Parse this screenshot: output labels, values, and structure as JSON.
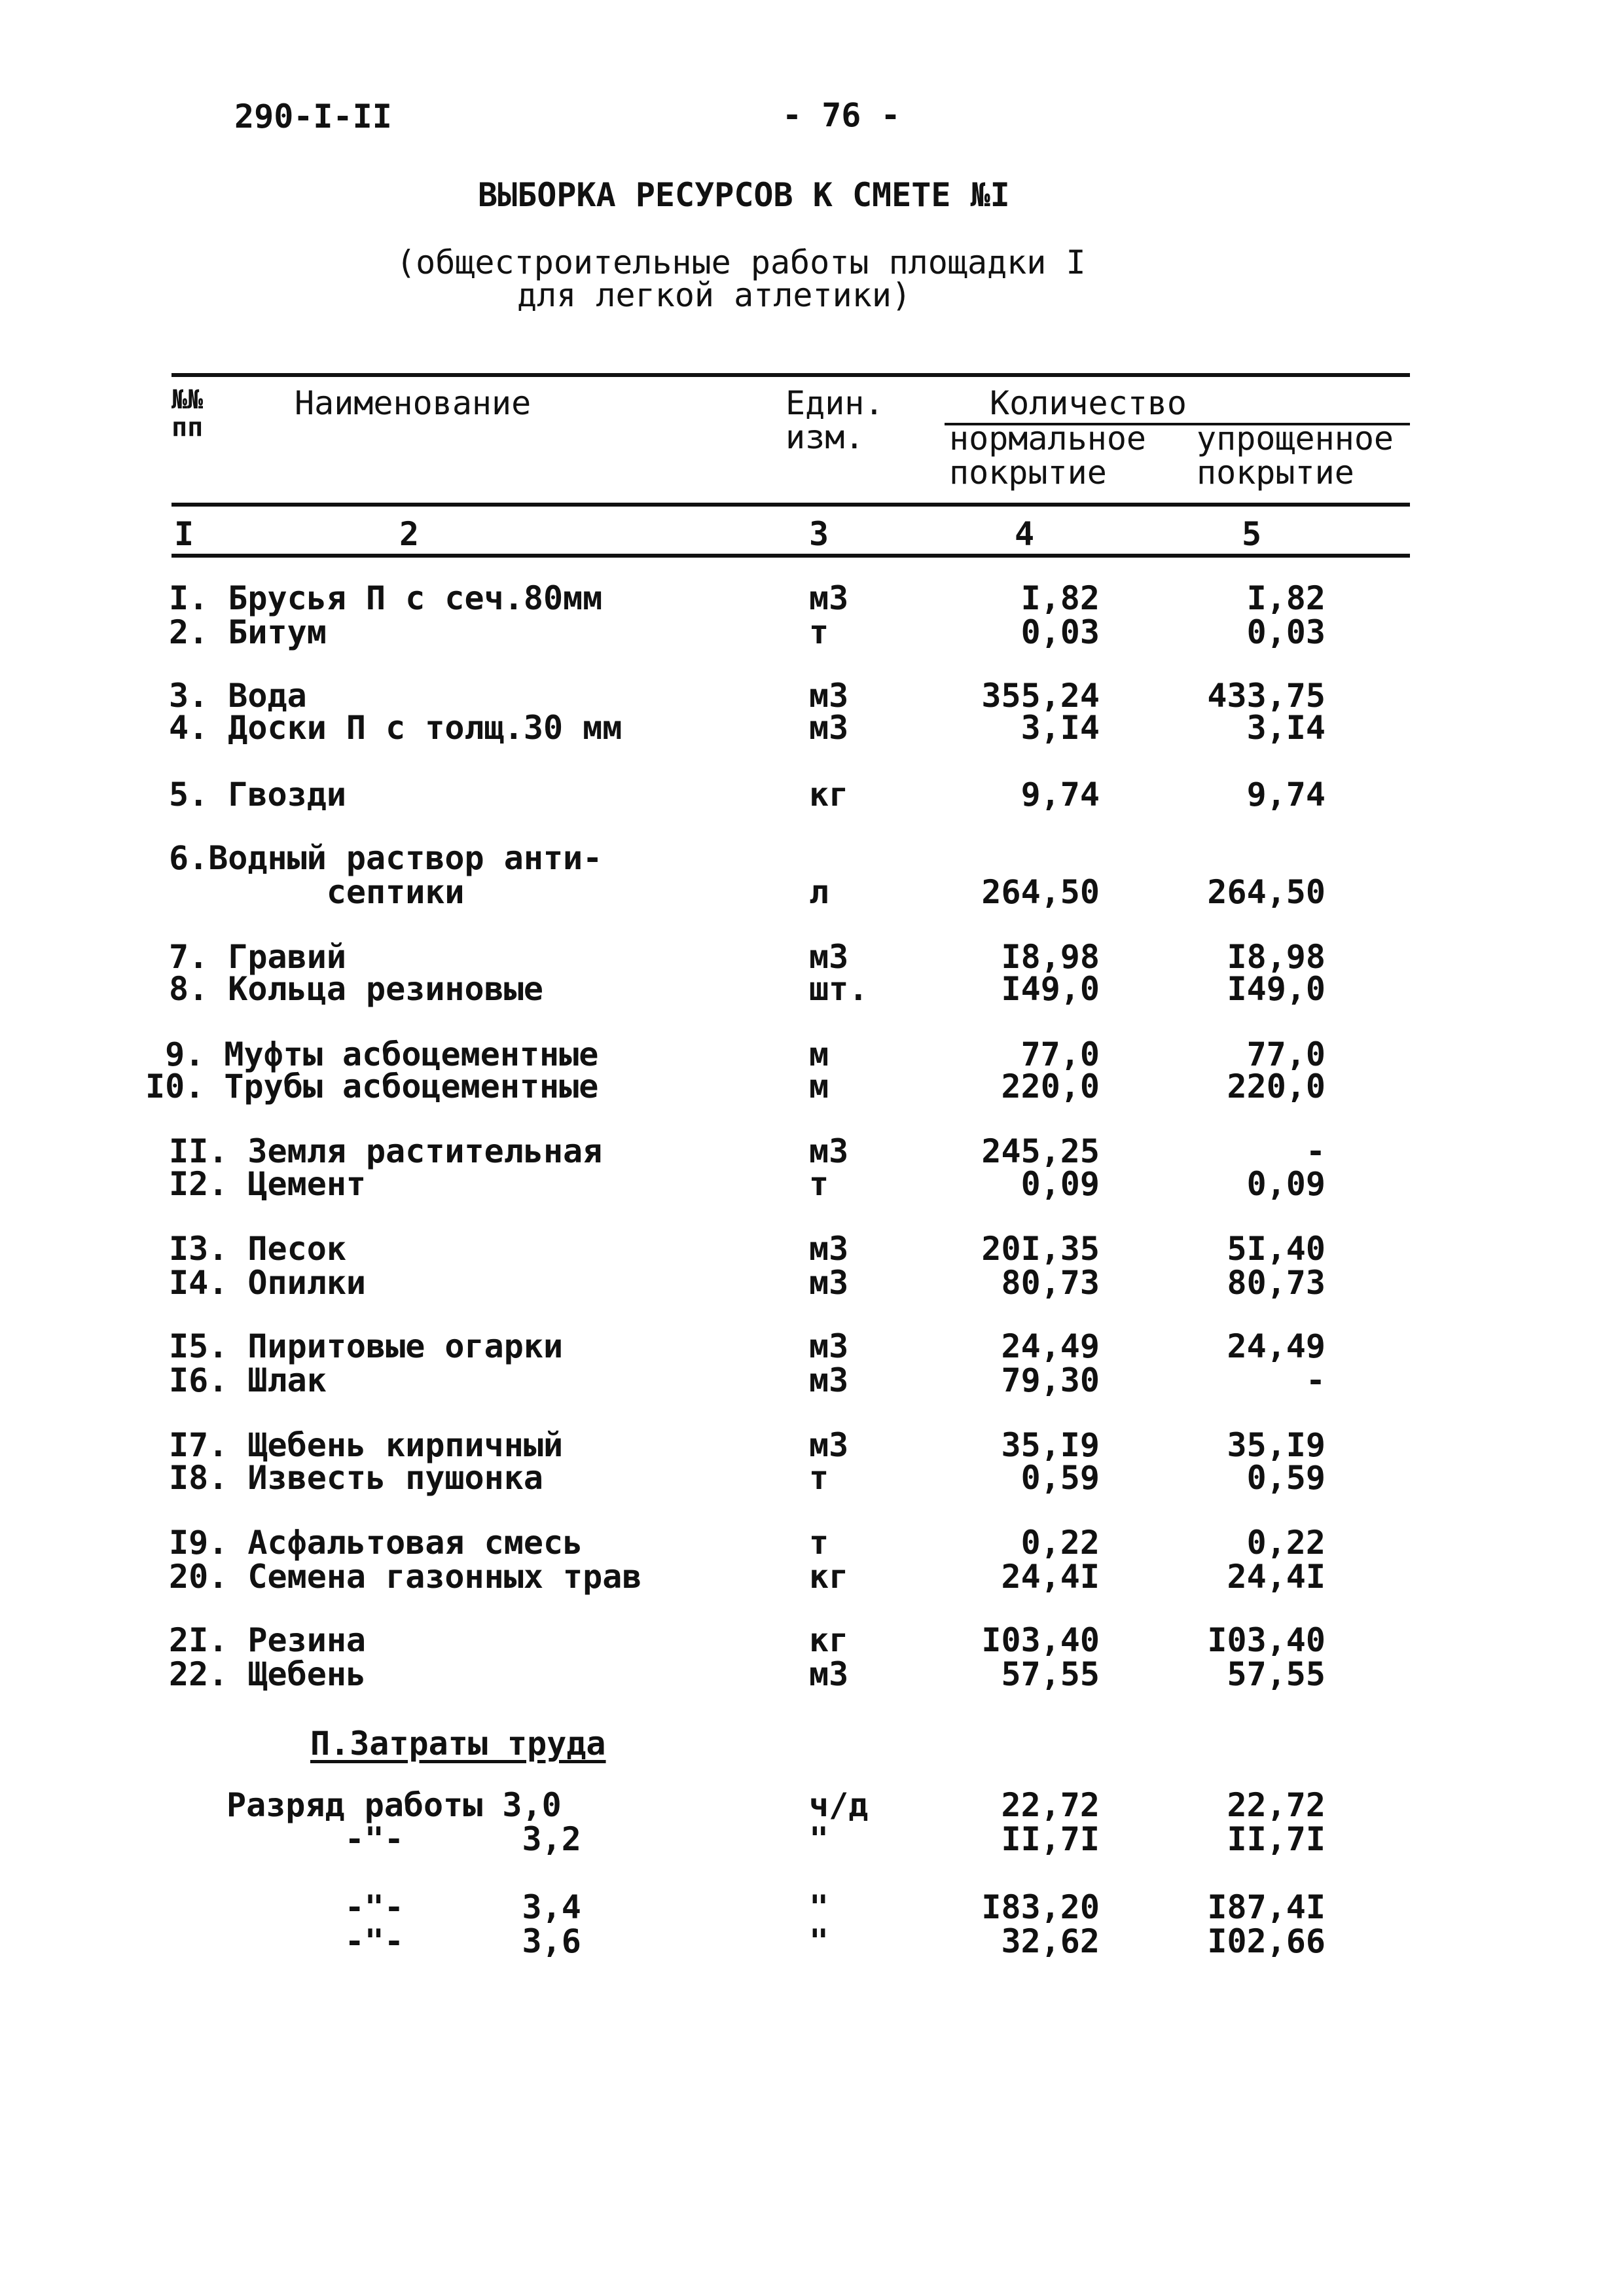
{
  "header": {
    "doc_code": "290-I-II",
    "page_number": "- 76 -",
    "title": "ВЫБОРКА РЕСУРСОВ К СМЕТЕ №I",
    "subtitle_line1": "(общестроительные работы площадки I",
    "subtitle_line2": "для легкой атлетики)"
  },
  "table": {
    "columns": {
      "number": "№№\nпп",
      "name": "Наименование",
      "unit": "Един.\nизм.",
      "quantity": "Количество",
      "normal": "нормальное\nпокрытие",
      "simplified": "упрощенное\nпокрытие"
    },
    "column_numbers": [
      "I",
      "2",
      "3",
      "4",
      "5"
    ],
    "rows": [
      {
        "name": "I. Брусья П с сеч.80мм",
        "unit": "м3",
        "normal": "I,82",
        "simplified": "I,82"
      },
      {
        "name": "2. Битум",
        "unit": "т",
        "normal": "0,03",
        "simplified": "0,03"
      },
      {
        "name": "3. Вода",
        "unit": "м3",
        "normal": "355,24",
        "simplified": "433,75"
      },
      {
        "name": "4. Доски П с толщ.30 мм",
        "unit": "м3",
        "normal": "3,I4",
        "simplified": "3,I4"
      },
      {
        "name": "5. Гвозди",
        "unit": "кг",
        "normal": "9,74",
        "simplified": "9,74"
      },
      {
        "name": "6.Водный раствор анти-",
        "unit": "",
        "normal": "",
        "simplified": ""
      },
      {
        "name": "        септики",
        "unit": "л",
        "normal": "264,50",
        "simplified": "264,50"
      },
      {
        "name": "7. Гравий",
        "unit": "м3",
        "normal": "I8,98",
        "simplified": "I8,98"
      },
      {
        "name": "8. Кольца резиновые",
        "unit": "шт.",
        "normal": "I49,0",
        "simplified": "I49,0"
      },
      {
        "name": " 9. Муфты асбоцементные",
        "unit": "м",
        "normal": "77,0",
        "simplified": "77,0"
      },
      {
        "name": "I0. Трубы асбоцементные",
        "unit": "м",
        "normal": "220,0",
        "simplified": "220,0"
      },
      {
        "name": "II. Земля растительная",
        "unit": "м3",
        "normal": "245,25",
        "simplified": "-"
      },
      {
        "name": "I2. Цемент",
        "unit": "т",
        "normal": "0,09",
        "simplified": "0,09"
      },
      {
        "name": "I3. Песок",
        "unit": "м3",
        "normal": "20I,35",
        "simplified": "5I,40"
      },
      {
        "name": "I4. Опилки",
        "unit": "м3",
        "normal": "80,73",
        "simplified": "80,73"
      },
      {
        "name": "I5. Пиритовые огарки",
        "unit": "м3",
        "normal": "24,49",
        "simplified": "24,49"
      },
      {
        "name": "I6. Шлак",
        "unit": "м3",
        "normal": "79,30",
        "simplified": "-"
      },
      {
        "name": "I7. Щебень кирпичный",
        "unit": "м3",
        "normal": "35,I9",
        "simplified": "35,I9"
      },
      {
        "name": "I8. Известь пушонка",
        "unit": "т",
        "normal": "0,59",
        "simplified": "0,59"
      },
      {
        "name": "I9. Асфальтовая смесь",
        "unit": "т",
        "normal": "0,22",
        "simplified": "0,22"
      },
      {
        "name": "20. Семена газонных трав",
        "unit": "кг",
        "normal": "24,4I",
        "simplified": "24,4I"
      },
      {
        "name": "2I. Резина",
        "unit": "кг",
        "normal": "I03,40",
        "simplified": "I03,40"
      },
      {
        "name": "22. Щебень",
        "unit": "м3",
        "normal": "57,55",
        "simplified": "57,55"
      }
    ],
    "section_title": "П.Затраты труда",
    "labor_rows": [
      {
        "name": "Разряд работы 3,0",
        "unit": "ч/д",
        "normal": "22,72",
        "simplified": "22,72"
      },
      {
        "name": "      -\"-      3,2",
        "unit": "\"",
        "normal": "II,7I",
        "simplified": "II,7I"
      },
      {
        "name": "      -\"-      3,4",
        "unit": "\"",
        "normal": "I83,20",
        "simplified": "I87,4I"
      },
      {
        "name": "      -\"-      3,6",
        "unit": "\"",
        "normal": "32,62",
        "simplified": "I02,66"
      }
    ]
  }
}
